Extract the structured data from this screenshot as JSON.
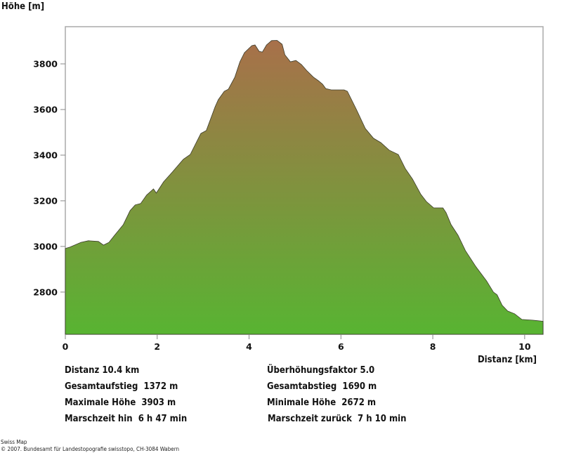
{
  "chart_data": {
    "type": "area",
    "title": "",
    "ylabel": "Höhe [m]",
    "xlabel": "Distanz [km]",
    "xlim": [
      0,
      10.4
    ],
    "ylim": [
      2615,
      3963
    ],
    "xticks": [
      0,
      2,
      4,
      6,
      8,
      10
    ],
    "yticks": [
      2800,
      3000,
      3200,
      3400,
      3600,
      3800
    ],
    "grid": false,
    "colors": {
      "top": "#a8704a",
      "bottom": "#58b432",
      "line": "#3a3a2a",
      "frame": "#aaaaaa"
    },
    "x": [
      0,
      0.1,
      0.34,
      0.5,
      0.72,
      0.83,
      0.95,
      1.06,
      1.26,
      1.41,
      1.52,
      1.64,
      1.77,
      1.92,
      1.98,
      2.14,
      2.33,
      2.57,
      2.72,
      2.95,
      3.07,
      3.26,
      3.33,
      3.46,
      3.55,
      3.69,
      3.8,
      3.9,
      4.06,
      4.13,
      4.22,
      4.29,
      4.38,
      4.49,
      4.61,
      4.72,
      4.78,
      4.9,
      5.02,
      5.14,
      5.25,
      5.4,
      5.51,
      5.6,
      5.67,
      5.79,
      6.07,
      6.14,
      6.33,
      6.53,
      6.71,
      6.87,
      7.05,
      7.25,
      7.4,
      7.56,
      7.74,
      7.86,
      8.02,
      8.22,
      8.29,
      8.4,
      8.55,
      8.71,
      8.94,
      9.17,
      9.32,
      9.4,
      9.51,
      9.63,
      9.78,
      9.94,
      10.17,
      10.4
    ],
    "y": [
      2991,
      2997,
      3018,
      3025,
      3022,
      3006,
      3018,
      3046,
      3095,
      3157,
      3182,
      3188,
      3225,
      3252,
      3234,
      3283,
      3326,
      3382,
      3403,
      3495,
      3508,
      3612,
      3643,
      3680,
      3689,
      3742,
      3809,
      3849,
      3880,
      3883,
      3855,
      3852,
      3883,
      3902,
      3903,
      3886,
      3840,
      3809,
      3815,
      3797,
      3772,
      3742,
      3726,
      3711,
      3692,
      3686,
      3686,
      3680,
      3603,
      3517,
      3474,
      3455,
      3422,
      3403,
      3342,
      3295,
      3228,
      3197,
      3169,
      3169,
      3148,
      3095,
      3049,
      2982,
      2911,
      2849,
      2800,
      2788,
      2742,
      2717,
      2705,
      2680,
      2677,
      2672
    ]
  },
  "stats": {
    "distance": "Distanz 10.4 km",
    "exaggeration": "Überhöhungsfaktor 5.0",
    "ascent": "Gesamtaufstieg  1372 m",
    "descent": "Gesamtabstieg  1690 m",
    "max_elev": "Maximale Höhe  3903 m",
    "min_elev": "Minimale Höhe  2672 m",
    "time_there": "Marschzeit hin  6 h 47 min",
    "time_back": "Marschzeit zurück  7 h 10 min"
  },
  "footer": {
    "line1": "Swiss Map",
    "line2": "© 2007. Bundesamt für Landestopografie swisstopo, CH-3084 Wabern"
  }
}
